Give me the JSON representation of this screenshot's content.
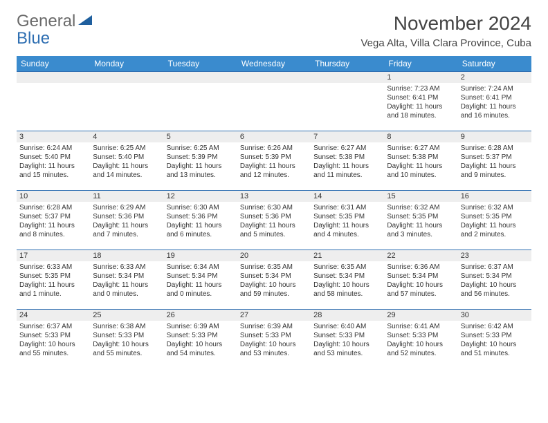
{
  "logo": {
    "line1": "General",
    "line2": "Blue"
  },
  "title": "November 2024",
  "location": "Vega Alta, Villa Clara Province, Cuba",
  "colors": {
    "header_bg": "#3a8bce",
    "header_text": "#ffffff",
    "daynum_bg": "#eeeeee",
    "row_border": "#2f6fb2",
    "logo_gray": "#6a6a6a",
    "logo_blue": "#2f6fb2",
    "text": "#333333",
    "background": "#ffffff"
  },
  "weekdays": [
    "Sunday",
    "Monday",
    "Tuesday",
    "Wednesday",
    "Thursday",
    "Friday",
    "Saturday"
  ],
  "weeks": [
    [
      null,
      null,
      null,
      null,
      null,
      {
        "n": "1",
        "sr": "7:23 AM",
        "ss": "6:41 PM",
        "dl": "11 hours and 18 minutes."
      },
      {
        "n": "2",
        "sr": "7:24 AM",
        "ss": "6:41 PM",
        "dl": "11 hours and 16 minutes."
      }
    ],
    [
      {
        "n": "3",
        "sr": "6:24 AM",
        "ss": "5:40 PM",
        "dl": "11 hours and 15 minutes."
      },
      {
        "n": "4",
        "sr": "6:25 AM",
        "ss": "5:40 PM",
        "dl": "11 hours and 14 minutes."
      },
      {
        "n": "5",
        "sr": "6:25 AM",
        "ss": "5:39 PM",
        "dl": "11 hours and 13 minutes."
      },
      {
        "n": "6",
        "sr": "6:26 AM",
        "ss": "5:39 PM",
        "dl": "11 hours and 12 minutes."
      },
      {
        "n": "7",
        "sr": "6:27 AM",
        "ss": "5:38 PM",
        "dl": "11 hours and 11 minutes."
      },
      {
        "n": "8",
        "sr": "6:27 AM",
        "ss": "5:38 PM",
        "dl": "11 hours and 10 minutes."
      },
      {
        "n": "9",
        "sr": "6:28 AM",
        "ss": "5:37 PM",
        "dl": "11 hours and 9 minutes."
      }
    ],
    [
      {
        "n": "10",
        "sr": "6:28 AM",
        "ss": "5:37 PM",
        "dl": "11 hours and 8 minutes."
      },
      {
        "n": "11",
        "sr": "6:29 AM",
        "ss": "5:36 PM",
        "dl": "11 hours and 7 minutes."
      },
      {
        "n": "12",
        "sr": "6:30 AM",
        "ss": "5:36 PM",
        "dl": "11 hours and 6 minutes."
      },
      {
        "n": "13",
        "sr": "6:30 AM",
        "ss": "5:36 PM",
        "dl": "11 hours and 5 minutes."
      },
      {
        "n": "14",
        "sr": "6:31 AM",
        "ss": "5:35 PM",
        "dl": "11 hours and 4 minutes."
      },
      {
        "n": "15",
        "sr": "6:32 AM",
        "ss": "5:35 PM",
        "dl": "11 hours and 3 minutes."
      },
      {
        "n": "16",
        "sr": "6:32 AM",
        "ss": "5:35 PM",
        "dl": "11 hours and 2 minutes."
      }
    ],
    [
      {
        "n": "17",
        "sr": "6:33 AM",
        "ss": "5:35 PM",
        "dl": "11 hours and 1 minute."
      },
      {
        "n": "18",
        "sr": "6:33 AM",
        "ss": "5:34 PM",
        "dl": "11 hours and 0 minutes."
      },
      {
        "n": "19",
        "sr": "6:34 AM",
        "ss": "5:34 PM",
        "dl": "11 hours and 0 minutes."
      },
      {
        "n": "20",
        "sr": "6:35 AM",
        "ss": "5:34 PM",
        "dl": "10 hours and 59 minutes."
      },
      {
        "n": "21",
        "sr": "6:35 AM",
        "ss": "5:34 PM",
        "dl": "10 hours and 58 minutes."
      },
      {
        "n": "22",
        "sr": "6:36 AM",
        "ss": "5:34 PM",
        "dl": "10 hours and 57 minutes."
      },
      {
        "n": "23",
        "sr": "6:37 AM",
        "ss": "5:34 PM",
        "dl": "10 hours and 56 minutes."
      }
    ],
    [
      {
        "n": "24",
        "sr": "6:37 AM",
        "ss": "5:33 PM",
        "dl": "10 hours and 55 minutes."
      },
      {
        "n": "25",
        "sr": "6:38 AM",
        "ss": "5:33 PM",
        "dl": "10 hours and 55 minutes."
      },
      {
        "n": "26",
        "sr": "6:39 AM",
        "ss": "5:33 PM",
        "dl": "10 hours and 54 minutes."
      },
      {
        "n": "27",
        "sr": "6:39 AM",
        "ss": "5:33 PM",
        "dl": "10 hours and 53 minutes."
      },
      {
        "n": "28",
        "sr": "6:40 AM",
        "ss": "5:33 PM",
        "dl": "10 hours and 53 minutes."
      },
      {
        "n": "29",
        "sr": "6:41 AM",
        "ss": "5:33 PM",
        "dl": "10 hours and 52 minutes."
      },
      {
        "n": "30",
        "sr": "6:42 AM",
        "ss": "5:33 PM",
        "dl": "10 hours and 51 minutes."
      }
    ]
  ],
  "labels": {
    "sunrise": "Sunrise:",
    "sunset": "Sunset:",
    "daylight": "Daylight:"
  }
}
